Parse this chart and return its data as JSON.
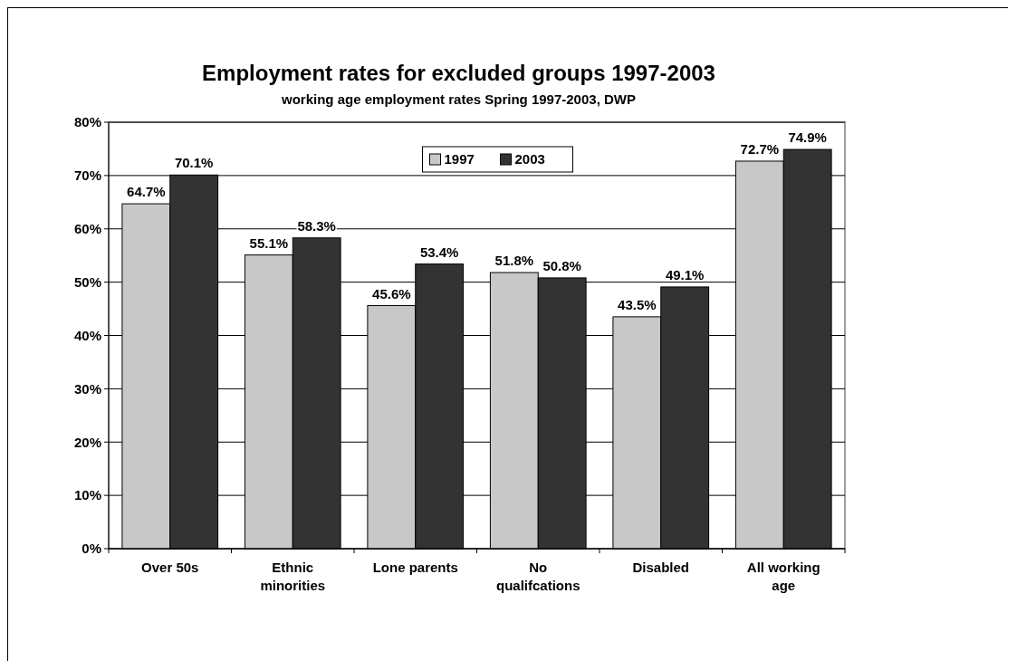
{
  "chart_data": {
    "type": "bar",
    "title": "Employment rates for excluded groups 1997-2003",
    "subtitle": "working age employment rates Spring 1997-2003, DWP",
    "categories": [
      "Over 50s",
      "Ethnic minorities",
      "Lone parents",
      "No qualifcations",
      "Disabled",
      "All working age"
    ],
    "series": [
      {
        "name": "1997",
        "color": "#c8c8c8",
        "values": [
          64.7,
          55.1,
          45.6,
          51.8,
          43.5,
          72.7
        ],
        "value_labels": [
          "64.7%",
          "55.1%",
          "45.6%",
          "51.8%",
          "43.5%",
          "72.7%"
        ]
      },
      {
        "name": "2003",
        "color": "#333333",
        "values": [
          70.1,
          58.3,
          53.4,
          50.8,
          49.1,
          74.9
        ],
        "value_labels": [
          "70.1%",
          "58.3%",
          "53.4%",
          "50.8%",
          "49.1%",
          "74.9%"
        ]
      }
    ],
    "ylim": [
      0,
      80
    ],
    "yticks": [
      {
        "value": 0,
        "label": "0%"
      },
      {
        "value": 10,
        "label": "10%"
      },
      {
        "value": 20,
        "label": "20%"
      },
      {
        "value": 30,
        "label": "30%"
      },
      {
        "value": 40,
        "label": "40%"
      },
      {
        "value": 50,
        "label": "50%"
      },
      {
        "value": 60,
        "label": "60%"
      },
      {
        "value": 70,
        "label": "70%"
      },
      {
        "value": 80,
        "label": "80%"
      }
    ],
    "grid": "y",
    "legend": "top"
  }
}
